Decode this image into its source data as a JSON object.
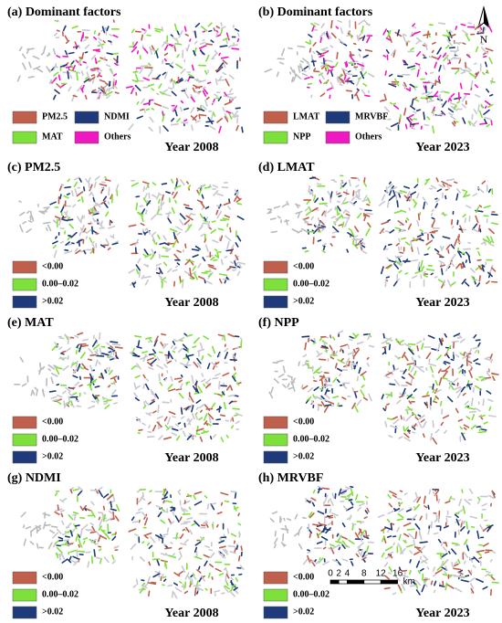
{
  "panels": [
    {
      "title": "(a) Dominant factors",
      "legend": [
        {
          "label": "PM2.5",
          "color": "#c0604c"
        },
        {
          "label": "NDMI",
          "color": "#1f3a7a"
        },
        {
          "label": "MAT",
          "color": "#7ee03a"
        },
        {
          "label": "Others",
          "color": "#f018c0"
        }
      ],
      "year": "Year 2008"
    },
    {
      "title": "(b) Dominant factors",
      "legend": [
        {
          "label": "LMAT",
          "color": "#c0604c"
        },
        {
          "label": "MRVBF",
          "color": "#1f3a7a"
        },
        {
          "label": "NPP",
          "color": "#7ee03a"
        },
        {
          "label": "Others",
          "color": "#f018c0"
        }
      ],
      "year": "Year 2023"
    },
    {
      "title": "(c) PM2.5",
      "legend": [
        {
          "label": "<0.00",
          "color": "#c0604c"
        },
        {
          "label": "0.00–0.02",
          "color": "#7ee03a"
        },
        {
          "label": ">0.02",
          "color": "#1f3a7a"
        }
      ],
      "year": "Year 2008"
    },
    {
      "title": "(d) LMAT",
      "legend": [
        {
          "label": "<0.00",
          "color": "#c0604c"
        },
        {
          "label": "0.00–0.02",
          "color": "#7ee03a"
        },
        {
          "label": ">0.02",
          "color": "#1f3a7a"
        }
      ],
      "year": "Year 2023"
    },
    {
      "title": "(e) MAT",
      "legend": [
        {
          "label": "<0.00",
          "color": "#c0604c"
        },
        {
          "label": "0.00–0.02",
          "color": "#7ee03a"
        },
        {
          "label": ">0.02",
          "color": "#1f3a7a"
        }
      ],
      "year": "Year 2008"
    },
    {
      "title": "(f) NPP",
      "legend": [
        {
          "label": "<0.00",
          "color": "#c0604c"
        },
        {
          "label": "0.00–0.02",
          "color": "#7ee03a"
        },
        {
          "label": ">0.02",
          "color": "#1f3a7a"
        }
      ],
      "year": "Year 2023"
    },
    {
      "title": "(g) NDMI",
      "legend": [
        {
          "label": "<0.00",
          "color": "#c0604c"
        },
        {
          "label": "0.00–0.02",
          "color": "#7ee03a"
        },
        {
          "label": ">0.02",
          "color": "#1f3a7a"
        }
      ],
      "year": "Year 2008"
    },
    {
      "title": "(h) MRVBF",
      "legend": [
        {
          "label": "<0.00",
          "color": "#c0604c"
        },
        {
          "label": "0.00–0.02",
          "color": "#7ee03a"
        },
        {
          "label": ">0.02",
          "color": "#1f3a7a"
        }
      ],
      "year": "Year 2023"
    }
  ],
  "north": "N",
  "scale_bar": {
    "ticks": [
      0,
      2,
      4,
      8,
      12,
      16
    ],
    "unit": "km"
  }
}
